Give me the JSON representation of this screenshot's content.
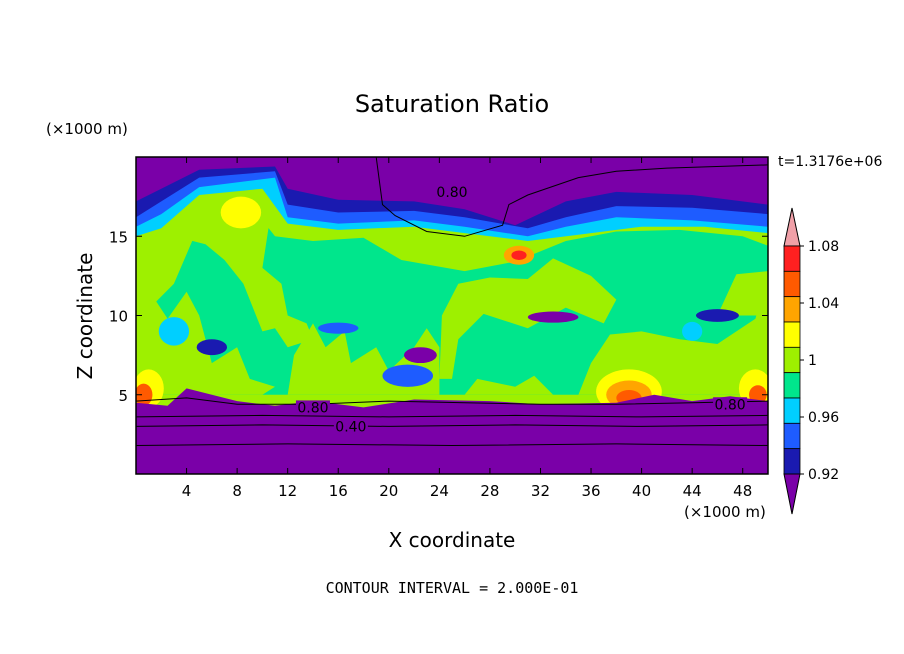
{
  "chart_data": {
    "type": "heatmap",
    "title": "Saturation Ratio",
    "xlabel": "X coordinate",
    "ylabel": "Z coordinate",
    "x_unit": "(×1000 m)",
    "y_unit": "(×1000 m)",
    "time_label": "t=1.3176e+06",
    "footer": "CONTOUR INTERVAL = 2.000E-01",
    "xlim": [
      0,
      50
    ],
    "ylim": [
      0,
      20
    ],
    "x_ticks": [
      "4",
      "8",
      "12",
      "16",
      "20",
      "24",
      "28",
      "32",
      "36",
      "40",
      "44",
      "48"
    ],
    "y_ticks": [
      "5",
      "10",
      "15"
    ],
    "colorbar": {
      "labels": [
        "1.08",
        "1.04",
        "1",
        "0.96",
        "0.92"
      ],
      "levels": [
        0.9,
        0.92,
        0.94,
        0.96,
        0.98,
        1.0,
        1.02,
        1.04,
        1.06,
        1.08,
        1.1
      ],
      "colors": [
        "#7a00a8",
        "#1a1ab0",
        "#1e5cff",
        "#00cfff",
        "#00e68c",
        "#9ef000",
        "#ffff00",
        "#ffa500",
        "#ff5a00",
        "#ff2020",
        "#f0a0a8"
      ]
    },
    "contour_labels": [
      {
        "text": "0.80",
        "x": 25,
        "y": 17.8
      },
      {
        "text": "0.80",
        "x": 14,
        "y": 4.2
      },
      {
        "text": "0.40",
        "x": 17,
        "y": 3
      },
      {
        "text": "0.80",
        "x": 47,
        "y": 4.4
      }
    ]
  }
}
